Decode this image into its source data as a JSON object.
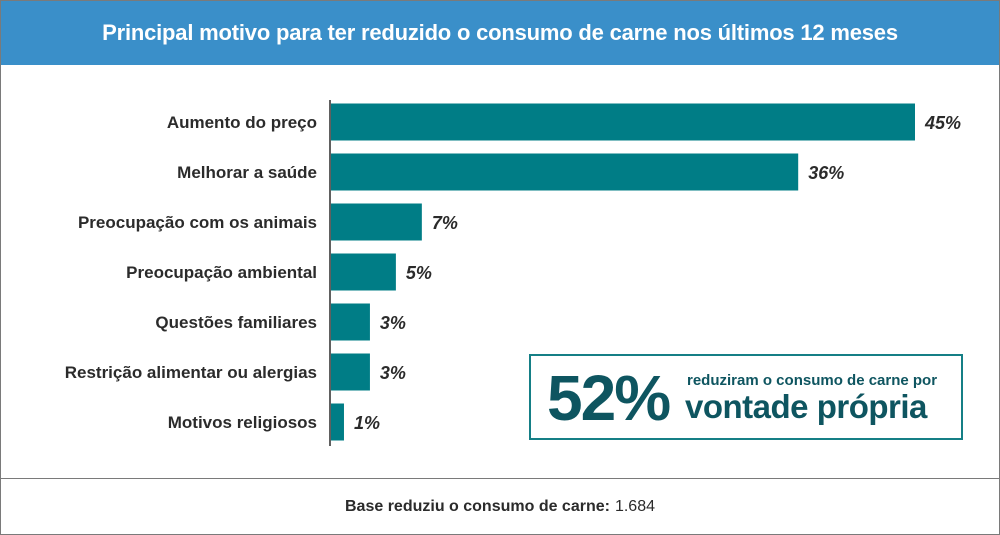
{
  "header": {
    "title": "Principal motivo para ter reduzido o consumo de carne nos últimos 12 meses"
  },
  "chart_data": {
    "type": "bar",
    "orientation": "horizontal",
    "title": "Principal motivo para ter reduzido o consumo de carne nos últimos 12 meses",
    "categories": [
      "Aumento do preço",
      "Melhorar a saúde",
      "Preocupação com os animais",
      "Preocupação ambiental",
      "Questões familiares",
      "Restrição alimentar ou alergias",
      "Motivos religiosos"
    ],
    "values": [
      45,
      36,
      7,
      5,
      3,
      3,
      1
    ],
    "value_labels": [
      "45%",
      "36%",
      "7%",
      "5%",
      "3%",
      "3%",
      "1%"
    ],
    "bar_color": "#007d86",
    "xlim": [
      0,
      45
    ],
    "grid": false,
    "legend": "none"
  },
  "callout": {
    "percent": "52%",
    "line1": "reduziram o consumo de carne por",
    "line2": "vontade própria"
  },
  "footer": {
    "label": "Base reduziu o consumo de carne:",
    "value": "1.684"
  }
}
